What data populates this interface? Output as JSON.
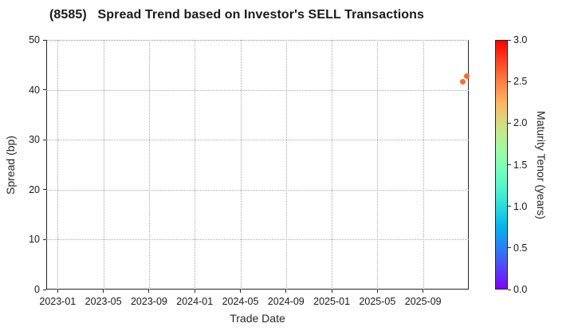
{
  "chart_data": {
    "type": "scatter",
    "title": "(8585)   Spread Trend based on Investor's SELL Transactions",
    "xlabel": "Trade Date",
    "ylabel": "Spread (bp)",
    "xlim": [
      "2022-12",
      "2026-01"
    ],
    "ylim": [
      0,
      50
    ],
    "x_ticks": [
      "2023-01",
      "2023-05",
      "2023-09",
      "2024-01",
      "2024-05",
      "2024-09",
      "2025-01",
      "2025-05",
      "2025-09"
    ],
    "y_ticks": [
      0,
      10,
      20,
      30,
      40,
      50
    ],
    "grid": true,
    "gridline_style": "dotted",
    "background_color": "#ffffff",
    "points": [
      {
        "trade_date": "2025-12-16",
        "spread_bp": 41.6,
        "maturity_tenor_years": 2.6
      },
      {
        "trade_date": "2025-12-27",
        "spread_bp": 42.7,
        "maturity_tenor_years": 2.6
      }
    ],
    "point_color": "#f25a33",
    "colorbar": {
      "label": "Maturity Tenor (years)",
      "min": 0,
      "max": 3,
      "ticks": [
        0,
        0.5,
        1,
        1.5,
        2,
        2.5,
        3
      ],
      "colormap": "rainbow",
      "color_min": "#8000ff",
      "color_mid": "#80ffb4",
      "color_max": "#ff0000"
    }
  }
}
